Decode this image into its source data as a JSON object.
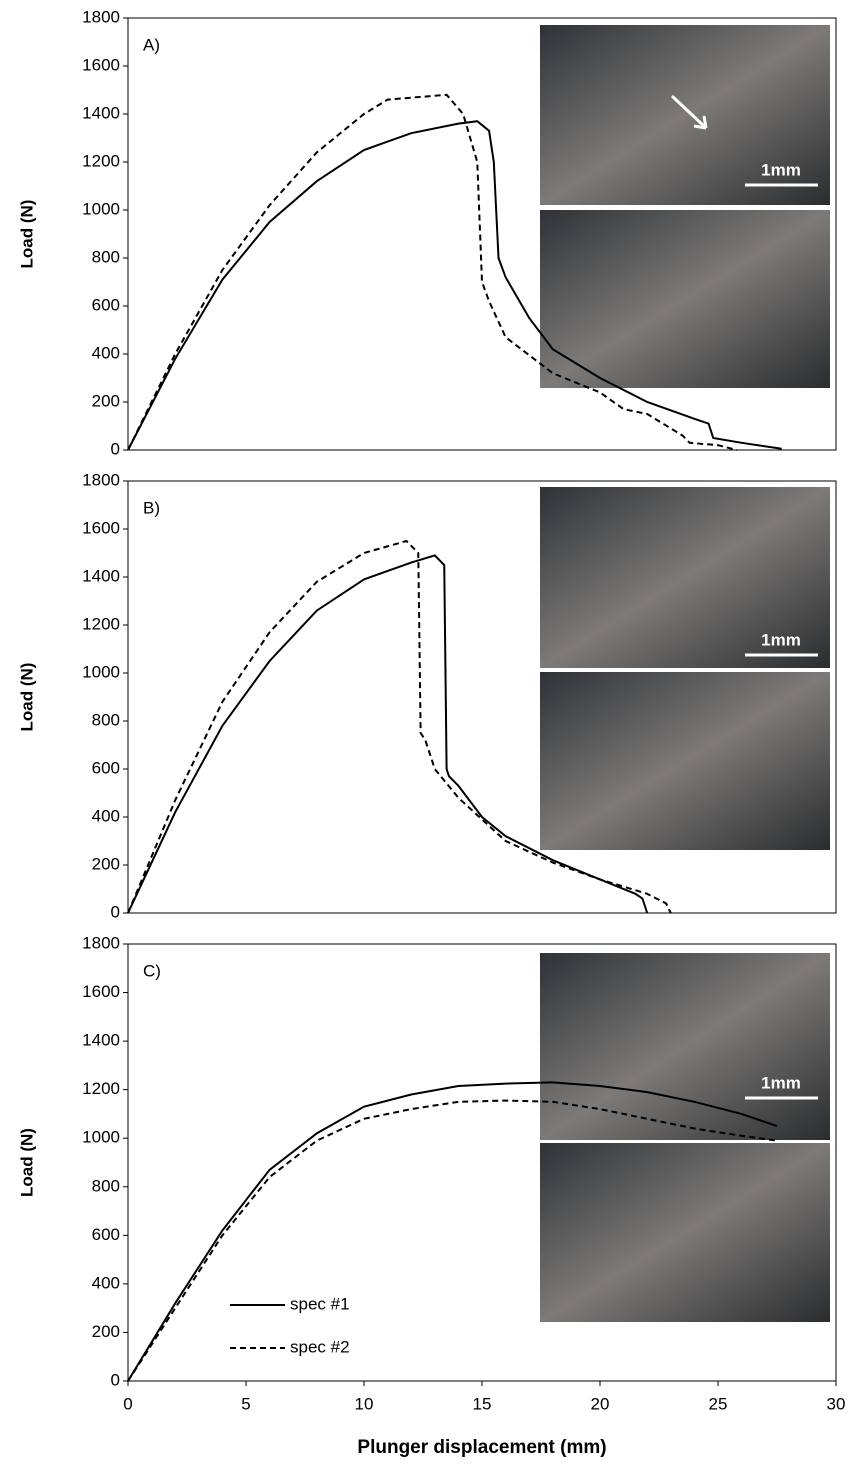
{
  "chart_data": [
    {
      "type": "line",
      "panel_label": "A)",
      "scale_bar": "1mm",
      "ylabel": "Load (N)",
      "xlim": [
        0,
        30
      ],
      "ylim": [
        0,
        1800
      ],
      "yticks": [
        0,
        200,
        400,
        600,
        800,
        1000,
        1200,
        1400,
        1600,
        1800
      ],
      "series": [
        {
          "color": "#000000",
          "dash": false,
          "x": [
            0,
            2,
            4,
            6,
            8,
            10,
            12,
            14,
            14.8,
            15.3,
            15.5,
            15.7,
            16,
            17,
            18,
            20,
            22,
            24,
            24.6,
            24.8,
            26,
            27.7
          ],
          "values": [
            0,
            380,
            710,
            950,
            1120,
            1250,
            1320,
            1360,
            1370,
            1330,
            1200,
            800,
            720,
            550,
            420,
            300,
            200,
            130,
            110,
            50,
            30,
            5
          ]
        },
        {
          "color": "#000000",
          "dash": true,
          "x": [
            0,
            2,
            4,
            6,
            8,
            10,
            11,
            13.5,
            14.2,
            14.8,
            15,
            15.3,
            16,
            18,
            20,
            21,
            22,
            23.5,
            23.8,
            25,
            25.8
          ],
          "values": [
            0,
            400,
            750,
            1020,
            1240,
            1400,
            1460,
            1480,
            1400,
            1200,
            700,
            620,
            470,
            320,
            240,
            170,
            150,
            60,
            30,
            20,
            0
          ]
        }
      ]
    },
    {
      "type": "line",
      "panel_label": "B)",
      "scale_bar": "1mm",
      "ylabel": "Load (N)",
      "xlim": [
        0,
        30
      ],
      "ylim": [
        0,
        1800
      ],
      "yticks": [
        0,
        200,
        400,
        600,
        800,
        1000,
        1200,
        1400,
        1600,
        1800
      ],
      "series": [
        {
          "color": "#000000",
          "dash": false,
          "x": [
            0,
            2,
            4,
            6,
            8,
            10,
            12,
            13,
            13.4,
            13.5,
            13.6,
            14,
            15,
            16,
            18,
            20,
            21.5,
            21.8,
            22
          ],
          "values": [
            0,
            420,
            780,
            1050,
            1260,
            1390,
            1460,
            1490,
            1450,
            600,
            570,
            530,
            400,
            320,
            220,
            140,
            80,
            60,
            0
          ]
        },
        {
          "color": "#000000",
          "dash": true,
          "x": [
            0,
            2,
            4,
            6,
            8,
            10,
            11.8,
            12.3,
            12.4,
            12.6,
            13,
            14,
            16,
            18,
            20,
            22,
            22.8,
            23
          ],
          "values": [
            0,
            470,
            880,
            1170,
            1380,
            1500,
            1550,
            1500,
            750,
            720,
            600,
            480,
            300,
            210,
            140,
            80,
            40,
            0
          ]
        }
      ]
    },
    {
      "type": "line",
      "panel_label": "C)",
      "scale_bar": "1mm",
      "ylabel": "Load (N)",
      "xlabel": "Plunger displacement (mm)",
      "xlim": [
        0,
        30
      ],
      "xticks": [
        0,
        5,
        10,
        15,
        20,
        25,
        30
      ],
      "ylim": [
        0,
        1800
      ],
      "yticks": [
        0,
        200,
        400,
        600,
        800,
        1000,
        1200,
        1400,
        1600,
        1800
      ],
      "series": [
        {
          "name": "spec #1",
          "color": "#000000",
          "dash": false,
          "x": [
            0,
            2,
            4,
            6,
            8,
            10,
            12,
            14,
            16,
            18,
            20,
            22,
            24,
            26,
            27.5
          ],
          "values": [
            0,
            320,
            620,
            870,
            1020,
            1130,
            1180,
            1215,
            1225,
            1230,
            1215,
            1190,
            1150,
            1100,
            1050
          ]
        },
        {
          "name": "spec #2",
          "color": "#000000",
          "dash": true,
          "x": [
            0,
            2,
            4,
            6,
            8,
            10,
            12,
            14,
            16,
            18,
            20,
            22,
            24,
            26,
            27.5
          ],
          "values": [
            0,
            300,
            600,
            840,
            990,
            1080,
            1120,
            1150,
            1155,
            1150,
            1120,
            1080,
            1040,
            1010,
            990
          ]
        }
      ]
    }
  ]
}
